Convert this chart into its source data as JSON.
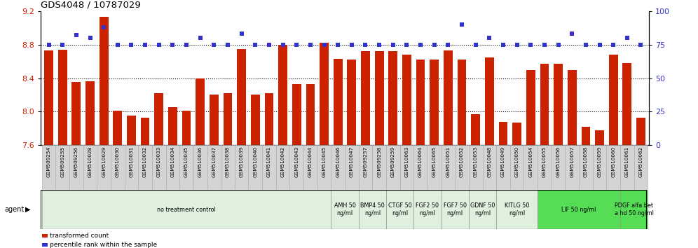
{
  "title": "GDS4048 / 10787029",
  "ylim_left": [
    7.6,
    9.2
  ],
  "ylim_right": [
    0,
    100
  ],
  "yticks_left": [
    7.6,
    8.0,
    8.4,
    8.8,
    9.2
  ],
  "yticks_right": [
    0,
    25,
    50,
    75,
    100
  ],
  "bar_color": "#cc2200",
  "dot_color": "#3333cc",
  "gridline_color": "#000000",
  "categories": [
    "GSM509254",
    "GSM509255",
    "GSM509256",
    "GSM510028",
    "GSM510029",
    "GSM510030",
    "GSM510031",
    "GSM510032",
    "GSM510033",
    "GSM510034",
    "GSM510035",
    "GSM510036",
    "GSM510037",
    "GSM510038",
    "GSM510039",
    "GSM510040",
    "GSM510041",
    "GSM510042",
    "GSM510043",
    "GSM510044",
    "GSM510045",
    "GSM510046",
    "GSM510047",
    "GSM509257",
    "GSM509258",
    "GSM509259",
    "GSM510063",
    "GSM510064",
    "GSM510065",
    "GSM510051",
    "GSM510052",
    "GSM510053",
    "GSM510048",
    "GSM510049",
    "GSM510050",
    "GSM510054",
    "GSM510055",
    "GSM510056",
    "GSM510057",
    "GSM510058",
    "GSM510059",
    "GSM510060",
    "GSM510061",
    "GSM510062"
  ],
  "bar_values": [
    8.73,
    8.74,
    8.35,
    8.36,
    9.13,
    8.01,
    7.95,
    7.93,
    8.22,
    8.05,
    8.01,
    8.4,
    8.2,
    8.22,
    8.75,
    8.2,
    8.22,
    8.8,
    8.33,
    8.33,
    8.82,
    8.63,
    8.62,
    8.72,
    8.72,
    8.72,
    8.68,
    8.62,
    8.62,
    8.73,
    8.62,
    7.97,
    8.65,
    7.88,
    7.87,
    8.5,
    8.57,
    8.57,
    8.5,
    7.82,
    7.78,
    8.68,
    8.58,
    7.93
  ],
  "dot_values": [
    75,
    75,
    82,
    80,
    88,
    75,
    75,
    75,
    75,
    75,
    75,
    80,
    75,
    75,
    83,
    75,
    75,
    75,
    75,
    75,
    75,
    75,
    75,
    75,
    75,
    75,
    75,
    75,
    75,
    75,
    90,
    75,
    80,
    75,
    75,
    75,
    75,
    75,
    83,
    75,
    75,
    75,
    80,
    75
  ],
  "agent_groups": [
    {
      "label": "no treatment control",
      "start": 0,
      "end": 21,
      "color": "#dff0df",
      "bright": false
    },
    {
      "label": "AMH 50\nng/ml",
      "start": 21,
      "end": 23,
      "color": "#dff0df",
      "bright": false
    },
    {
      "label": "BMP4 50\nng/ml",
      "start": 23,
      "end": 25,
      "color": "#dff0df",
      "bright": false
    },
    {
      "label": "CTGF 50\nng/ml",
      "start": 25,
      "end": 27,
      "color": "#dff0df",
      "bright": false
    },
    {
      "label": "FGF2 50\nng/ml",
      "start": 27,
      "end": 29,
      "color": "#dff0df",
      "bright": false
    },
    {
      "label": "FGF7 50\nng/ml",
      "start": 29,
      "end": 31,
      "color": "#dff0df",
      "bright": false
    },
    {
      "label": "GDNF 50\nng/ml",
      "start": 31,
      "end": 33,
      "color": "#dff0df",
      "bright": false
    },
    {
      "label": "KITLG 50\nng/ml",
      "start": 33,
      "end": 36,
      "color": "#dff0df",
      "bright": false
    },
    {
      "label": "LIF 50 ng/ml",
      "start": 36,
      "end": 42,
      "color": "#55dd55",
      "bright": true
    },
    {
      "label": "PDGF alfa bet\na hd 50 ng/ml",
      "start": 42,
      "end": 44,
      "color": "#55dd55",
      "bright": true
    }
  ],
  "legend_items": [
    {
      "label": "transformed count",
      "color": "#cc2200"
    },
    {
      "label": "percentile rank within the sample",
      "color": "#3333cc"
    }
  ],
  "ybar_gridlines": [
    8.0,
    8.4,
    8.8
  ],
  "tick_label_bg": "#d4d4d4",
  "tick_label_edge": "#aaaaaa"
}
